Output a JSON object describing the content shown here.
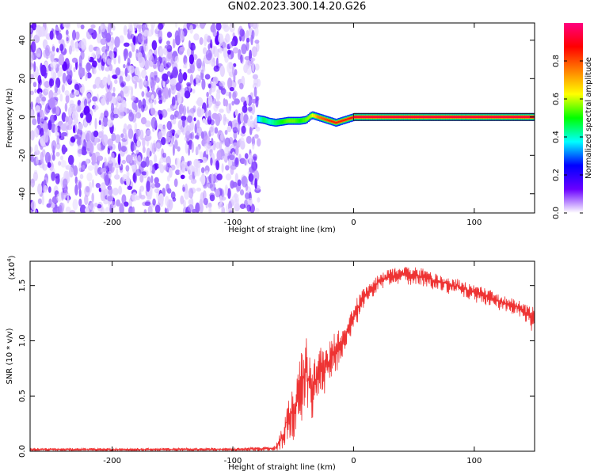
{
  "figure": {
    "title": "GN02.2023.300.14.20.G26"
  },
  "chart_data": [
    {
      "type": "heatmap",
      "title": "GN02.2023.300.14.20.G26",
      "xlabel": "Height of straight line (km)",
      "ylabel": "Frequency (Hz)",
      "xlim": [
        -268,
        150
      ],
      "ylim": [
        -50,
        49
      ],
      "x_ticks": [
        -200,
        -100,
        0,
        100
      ],
      "y_ticks": [
        -40,
        -20,
        0,
        20,
        40
      ],
      "x_tick_labels": [
        "-200",
        "-100",
        "0",
        "100"
      ],
      "y_tick_labels": [
        "-40",
        "-20",
        "0",
        "20",
        "40"
      ],
      "noise_region_x": [
        -268,
        -78
      ],
      "ridge": {
        "x": [
          -80,
          -75,
          -70,
          -65,
          -60,
          -55,
          -50,
          -45,
          -40,
          -35,
          -30,
          -25,
          -20,
          -15,
          -10,
          -5,
          0,
          50,
          100,
          150
        ],
        "freq": [
          -1,
          -1.5,
          -2.5,
          -3,
          -2.5,
          -2,
          -2,
          -2,
          -1.5,
          1,
          0,
          -1,
          -2,
          -3,
          -2,
          -1,
          0,
          0,
          0,
          0
        ],
        "amplitude": [
          0.35,
          0.45,
          0.4,
          0.45,
          0.5,
          0.55,
          0.55,
          0.5,
          0.55,
          0.6,
          0.75,
          0.8,
          0.85,
          0.85,
          0.85,
          0.85,
          0.9,
          0.95,
          0.95,
          0.95
        ]
      },
      "colorbar": {
        "label": "Normalized spectral amplitude",
        "range": [
          0.0,
          1.0
        ],
        "ticks": [
          0.0,
          0.2,
          0.4,
          0.6,
          0.8
        ],
        "tick_labels": [
          "0.0",
          "0.2",
          "0.4",
          "0.6",
          "0.8"
        ],
        "colormap": [
          "#ffffff",
          "#6a00ff",
          "#0000ff",
          "#00ffff",
          "#00ff00",
          "#ffff00",
          "#ff8000",
          "#ff0000",
          "#ff0080"
        ]
      },
      "grid": false
    },
    {
      "type": "line",
      "xlabel": "Height of straight line (km)",
      "ylabel": "SNR (10 * v/v)",
      "y_multiplier": "(x10",
      "y_multiplier_exp": "4",
      "y_multiplier_close": ")",
      "xlim": [
        -268,
        150
      ],
      "ylim": [
        0,
        1.72
      ],
      "x_ticks": [
        -200,
        -100,
        0,
        100
      ],
      "y_ticks": [
        0.0,
        0.5,
        1.0,
        1.5
      ],
      "x_tick_labels": [
        "-200",
        "-100",
        "0",
        "100"
      ],
      "y_tick_labels": [
        "0.0",
        "0.5",
        "1.0",
        "1.5"
      ],
      "color": "#ee3333",
      "envelope": {
        "x": [
          -268,
          -200,
          -100,
          -65,
          -58,
          -55,
          -50,
          -45,
          -40,
          -35,
          -30,
          -25,
          -20,
          -15,
          -10,
          -5,
          0,
          10,
          20,
          30,
          40,
          50,
          60,
          70,
          80,
          90,
          100,
          110,
          120,
          130,
          140,
          150
        ],
        "y_upper": [
          0.03,
          0.03,
          0.03,
          0.05,
          0.25,
          0.45,
          0.6,
          0.8,
          1.1,
          0.85,
          0.95,
          0.95,
          1.0,
          1.1,
          1.1,
          1.2,
          1.35,
          1.5,
          1.6,
          1.65,
          1.68,
          1.68,
          1.65,
          1.6,
          1.58,
          1.55,
          1.5,
          1.48,
          1.42,
          1.4,
          1.35,
          1.3
        ],
        "y_lower": [
          0.0,
          0.0,
          0.0,
          0.0,
          0.02,
          0.1,
          0.1,
          0.25,
          0.3,
          0.2,
          0.35,
          0.5,
          0.6,
          0.7,
          0.8,
          0.95,
          1.1,
          1.3,
          1.45,
          1.5,
          1.52,
          1.5,
          1.48,
          1.45,
          1.42,
          1.4,
          1.35,
          1.32,
          1.28,
          1.25,
          1.2,
          1.05
        ]
      },
      "grid": false
    }
  ]
}
